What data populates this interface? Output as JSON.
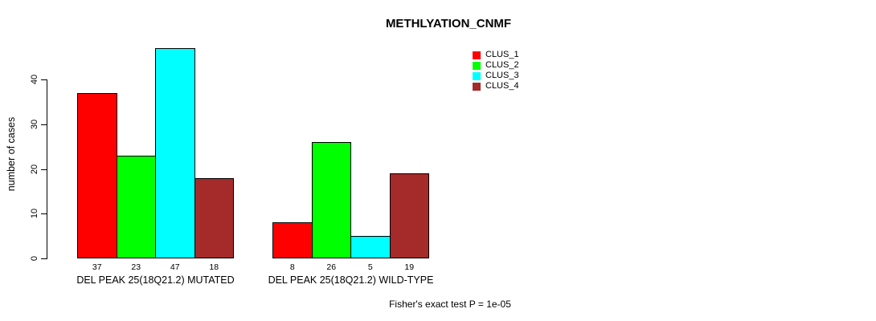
{
  "chart_data": {
    "type": "bar",
    "title": "METHLYATION_CNMF",
    "ylabel": "number of cases",
    "xlabel": "",
    "categories": [
      "DEL PEAK 25(18Q21.2) MUTATED",
      "DEL PEAK 25(18Q21.2) WILD-TYPE"
    ],
    "series": [
      {
        "name": "CLUS_1",
        "color": "#ff0000",
        "values": [
          37,
          8
        ]
      },
      {
        "name": "CLUS_2",
        "color": "#00ff00",
        "values": [
          23,
          26
        ]
      },
      {
        "name": "CLUS_3",
        "color": "#00ffff",
        "values": [
          47,
          5
        ]
      },
      {
        "name": "CLUS_4",
        "color": "#a52a2a",
        "values": [
          18,
          19
        ]
      }
    ],
    "bar_value_labels": [
      [
        37,
        23,
        47,
        18
      ],
      [
        8,
        26,
        5,
        19
      ]
    ],
    "yticks": [
      0,
      10,
      20,
      30,
      40
    ],
    "ylim": [
      0,
      47
    ],
    "grid": false,
    "legend_position": "top-right",
    "legend_entries": [
      "CLUS_1",
      "CLUS_2",
      "CLUS_3",
      "CLUS_4"
    ],
    "annotation": "Fisher's exact test P = 1e-05",
    "bar_border_color": "#000000",
    "background_color": "#ffffff"
  }
}
